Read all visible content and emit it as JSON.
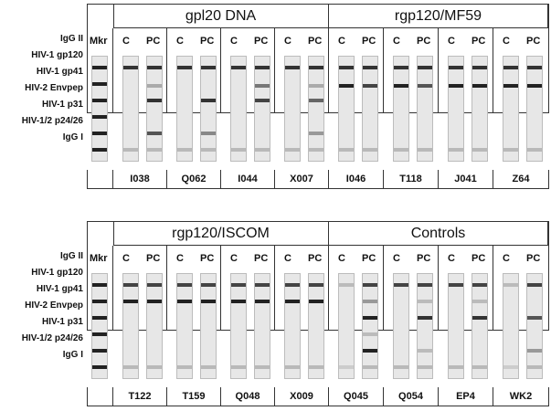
{
  "row_labels": [
    "IgG II",
    "HIV-1 gp120",
    "HIV-1 gp41",
    "HIV-2 Envpep",
    "HIV-1 p31",
    "HIV-1/2 p24/26",
    "IgG I"
  ],
  "mkr_label": "Mkr",
  "lane_labels": [
    "C",
    "PC"
  ],
  "panels": [
    {
      "groups": [
        {
          "title": "gpl20 DNA",
          "ids": [
            "I038",
            "Q062",
            "I044",
            "X007"
          ]
        },
        {
          "title": "rgp120/MF59",
          "ids": [
            "I046",
            "T118",
            "J041",
            "Z64"
          ]
        }
      ]
    },
    {
      "groups": [
        {
          "title": "rgp120/ISCOM",
          "ids": [
            "T122",
            "T159",
            "Q048",
            "X009"
          ]
        },
        {
          "title": "Controls",
          "ids": [
            "Q045",
            "Q054",
            "EP4",
            "WK2"
          ]
        }
      ]
    }
  ]
}
